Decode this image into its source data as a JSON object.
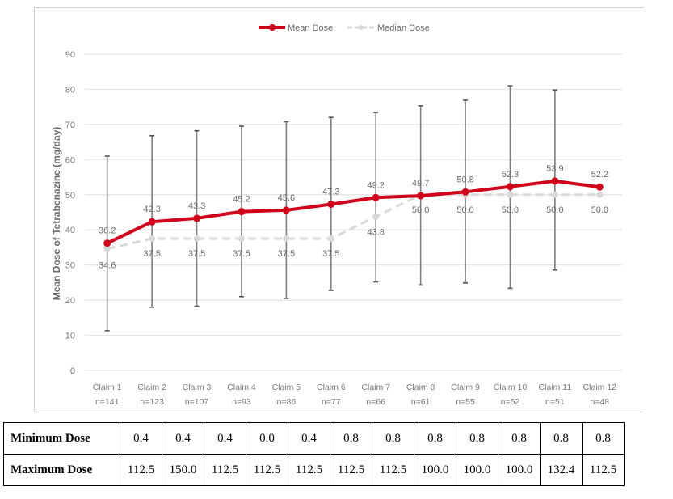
{
  "chart_data": {
    "type": "line",
    "title": "",
    "xlabel": "",
    "ylabel": "Mean Dose of Tetrabenazine (mg/day)",
    "ylim": [
      0,
      90
    ],
    "yticks": [
      0,
      10,
      20,
      30,
      40,
      50,
      60,
      70,
      80,
      90
    ],
    "grid": true,
    "legend_position": "top",
    "categories": [
      "Claim 1",
      "Claim 2",
      "Claim 3",
      "Claim 4",
      "Claim 5",
      "Claim 6",
      "Claim 7",
      "Claim 8",
      "Claim 9",
      "Claim 10",
      "Claim 11",
      "Claim 12"
    ],
    "category_n": [
      "n=141",
      "n=123",
      "n=107",
      "n=93",
      "n=86",
      "n=77",
      "n=66",
      "n=61",
      "n=55",
      "n=52",
      "n=51",
      "n=48"
    ],
    "series": [
      {
        "name": "Mean Dose",
        "color": "#d0021b",
        "style": "solid",
        "values": [
          36.2,
          42.3,
          43.3,
          45.2,
          45.6,
          47.3,
          49.2,
          49.7,
          50.8,
          52.3,
          53.9,
          52.2
        ],
        "labels": [
          "36.2",
          "42.3",
          "43.3",
          "45.2",
          "45.6",
          "47.3",
          "49.2",
          "49.7",
          "50.8",
          "52.3",
          "53.9",
          "52.2"
        ],
        "error_bars": {
          "upper": [
            61.0,
            66.8,
            68.2,
            69.5,
            70.8,
            72.0,
            73.4,
            75.3,
            76.9,
            81.0,
            79.8,
            null
          ],
          "lower": [
            11.3,
            18.0,
            18.3,
            21.0,
            20.5,
            22.8,
            25.2,
            24.3,
            24.9,
            23.4,
            28.6,
            null
          ]
        }
      },
      {
        "name": "Median Dose",
        "color": "#d9d9d9",
        "style": "dashed",
        "values": [
          34.6,
          37.5,
          37.5,
          37.5,
          37.5,
          37.5,
          43.8,
          50.0,
          50.0,
          50.0,
          50.0,
          50.0
        ],
        "labels": [
          "34.6",
          "37.5",
          "37.5",
          "37.5",
          "37.5",
          "37.5",
          "43.8",
          "50.0",
          "50.0",
          "50.0",
          "50.0",
          "50.0"
        ]
      }
    ]
  },
  "legend": {
    "mean_label": "Mean Dose",
    "median_label": "Median Dose"
  },
  "table": {
    "rows": [
      {
        "label": "Minimum Dose",
        "values": [
          "0.4",
          "0.4",
          "0.4",
          "0.0",
          "0.4",
          "0.8",
          "0.8",
          "0.8",
          "0.8",
          "0.8",
          "0.8",
          "0.8"
        ]
      },
      {
        "label": "Maximum Dose",
        "values": [
          "112.5",
          "150.0",
          "112.5",
          "112.5",
          "112.5",
          "112.5",
          "112.5",
          "100.0",
          "100.0",
          "100.0",
          "132.4",
          "112.5"
        ]
      }
    ]
  },
  "colors": {
    "mean": "#d0021b",
    "median": "#d9d9d9",
    "errorbar": "#7f7f7f",
    "grid": "#e3e3e3",
    "axis_text": "#7a7a7a"
  }
}
